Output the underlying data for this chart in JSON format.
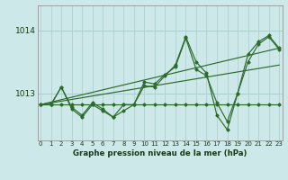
{
  "title": "Graphe pression niveau de la mer (hPa)",
  "background_color": "#cde8e8",
  "grid_color": "#aacccc",
  "line_color": "#2d6b2d",
  "x_ticks": [
    0,
    1,
    2,
    3,
    4,
    5,
    6,
    7,
    8,
    9,
    10,
    11,
    12,
    13,
    14,
    15,
    16,
    17,
    18,
    19,
    20,
    21,
    22,
    23
  ],
  "y_ticks": [
    1013,
    1014
  ],
  "ylim": [
    1012.25,
    1014.4
  ],
  "xlim": [
    -0.3,
    23.3
  ],
  "series": [
    {
      "x": [
        0,
        1,
        2,
        3,
        4,
        5,
        6,
        7,
        8,
        9,
        10,
        11,
        12,
        13,
        14,
        15,
        16,
        17,
        18,
        19,
        20,
        21,
        22,
        23
      ],
      "y": [
        1012.82,
        1012.82,
        1012.82,
        1012.82,
        1012.82,
        1012.82,
        1012.82,
        1012.82,
        1012.82,
        1012.82,
        1012.82,
        1012.82,
        1012.82,
        1012.82,
        1012.82,
        1012.82,
        1012.82,
        1012.82,
        1012.82,
        1012.82,
        1012.82,
        1012.82,
        1012.82,
        1012.82
      ],
      "marker": true
    },
    {
      "x": [
        0,
        23
      ],
      "y": [
        1012.82,
        1013.72
      ],
      "marker": false
    },
    {
      "x": [
        0,
        23
      ],
      "y": [
        1012.82,
        1013.45
      ],
      "marker": false
    },
    {
      "x": [
        0,
        1,
        2,
        3,
        4,
        5,
        6,
        7,
        8,
        9,
        10,
        11,
        12,
        13,
        14,
        15,
        16,
        17,
        18,
        19,
        20,
        21,
        22,
        23
      ],
      "y": [
        1012.82,
        1012.82,
        1013.1,
        1012.75,
        1012.62,
        1012.82,
        1012.72,
        1012.62,
        1012.82,
        1012.82,
        1013.12,
        1013.1,
        1013.28,
        1013.45,
        1013.9,
        1013.5,
        1013.32,
        1012.65,
        1012.42,
        1013.0,
        1013.62,
        1013.82,
        1013.92,
        1013.72
      ],
      "marker": true
    },
    {
      "x": [
        0,
        1,
        2,
        3,
        4,
        5,
        6,
        7,
        8,
        9,
        10,
        11,
        12,
        13,
        14,
        15,
        16,
        17,
        18,
        19,
        20,
        21,
        22,
        23
      ],
      "y": [
        1012.82,
        1012.82,
        1013.1,
        1012.78,
        1012.65,
        1012.85,
        1012.75,
        1012.62,
        1012.72,
        1012.82,
        1013.18,
        1013.15,
        1013.3,
        1013.42,
        1013.88,
        1013.38,
        1013.28,
        1012.85,
        1012.55,
        1013.0,
        1013.5,
        1013.78,
        1013.9,
        1013.7
      ],
      "marker": true
    }
  ]
}
